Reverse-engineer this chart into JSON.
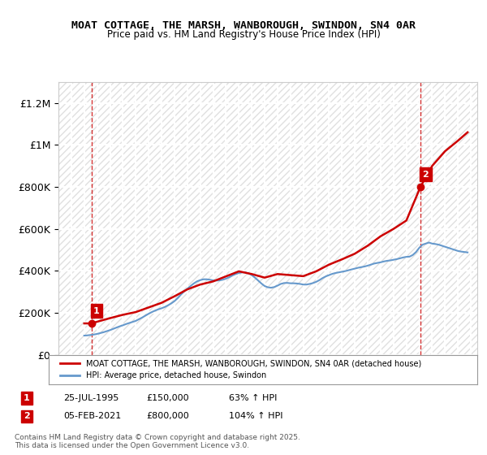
{
  "title": "MOAT COTTAGE, THE MARSH, WANBOROUGH, SWINDON, SN4 0AR",
  "subtitle": "Price paid vs. HM Land Registry's House Price Index (HPI)",
  "hpi_color": "#6699cc",
  "property_color": "#cc0000",
  "vline_color": "#cc0000",
  "background_color": "#ffffff",
  "grid_color": "#cccccc",
  "hatch_color": "#dddddd",
  "ylim": [
    0,
    1300000
  ],
  "yticks": [
    0,
    200000,
    400000,
    600000,
    800000,
    1000000,
    1200000
  ],
  "ytick_labels": [
    "£0",
    "£200K",
    "£400K",
    "£600K",
    "£800K",
    "£1M",
    "£1.2M"
  ],
  "xlabel_start": 1993,
  "xlabel_end": 2025,
  "transactions": [
    {
      "date": 1995.56,
      "price": 150000,
      "label": "1"
    },
    {
      "date": 2021.09,
      "price": 800000,
      "label": "2"
    }
  ],
  "transaction_info": [
    {
      "label": "1",
      "date_str": "25-JUL-1995",
      "price_str": "£150,000",
      "hpi_str": "63% ↑ HPI"
    },
    {
      "label": "2",
      "date_str": "05-FEB-2021",
      "price_str": "£800,000",
      "hpi_str": "104% ↑ HPI"
    }
  ],
  "legend_entries": [
    "MOAT COTTAGE, THE MARSH, WANBOROUGH, SWINDON, SN4 0AR (detached house)",
    "HPI: Average price, detached house, Swindon"
  ],
  "copyright_text": "Contains HM Land Registry data © Crown copyright and database right 2025.\nThis data is licensed under the Open Government Licence v3.0.",
  "hpi_data_x": [
    1995.0,
    1995.25,
    1995.5,
    1995.75,
    1996.0,
    1996.25,
    1996.5,
    1996.75,
    1997.0,
    1997.25,
    1997.5,
    1997.75,
    1998.0,
    1998.25,
    1998.5,
    1998.75,
    1999.0,
    1999.25,
    1999.5,
    1999.75,
    2000.0,
    2000.25,
    2000.5,
    2000.75,
    2001.0,
    2001.25,
    2001.5,
    2001.75,
    2002.0,
    2002.25,
    2002.5,
    2002.75,
    2003.0,
    2003.25,
    2003.5,
    2003.75,
    2004.0,
    2004.25,
    2004.5,
    2004.75,
    2005.0,
    2005.25,
    2005.5,
    2005.75,
    2006.0,
    2006.25,
    2006.5,
    2006.75,
    2007.0,
    2007.25,
    2007.5,
    2007.75,
    2008.0,
    2008.25,
    2008.5,
    2008.75,
    2009.0,
    2009.25,
    2009.5,
    2009.75,
    2010.0,
    2010.25,
    2010.5,
    2010.75,
    2011.0,
    2011.25,
    2011.5,
    2011.75,
    2012.0,
    2012.25,
    2012.5,
    2012.75,
    2013.0,
    2013.25,
    2013.5,
    2013.75,
    2014.0,
    2014.25,
    2014.5,
    2014.75,
    2015.0,
    2015.25,
    2015.5,
    2015.75,
    2016.0,
    2016.25,
    2016.5,
    2016.75,
    2017.0,
    2017.25,
    2017.5,
    2017.75,
    2018.0,
    2018.25,
    2018.5,
    2018.75,
    2019.0,
    2019.25,
    2019.5,
    2019.75,
    2020.0,
    2020.25,
    2020.5,
    2020.75,
    2021.0,
    2021.25,
    2021.5,
    2021.75,
    2022.0,
    2022.25,
    2022.5,
    2022.75,
    2023.0,
    2023.25,
    2023.5,
    2023.75,
    2024.0,
    2024.25,
    2024.5,
    2024.75
  ],
  "hpi_data_y": [
    92000,
    93000,
    95000,
    97000,
    100000,
    104000,
    108000,
    113000,
    118000,
    124000,
    130000,
    136000,
    141000,
    147000,
    152000,
    157000,
    162000,
    170000,
    178000,
    187000,
    196000,
    204000,
    211000,
    217000,
    222000,
    228000,
    236000,
    245000,
    256000,
    270000,
    287000,
    302000,
    315000,
    328000,
    340000,
    350000,
    356000,
    360000,
    360000,
    358000,
    355000,
    354000,
    355000,
    358000,
    363000,
    370000,
    378000,
    385000,
    390000,
    393000,
    393000,
    388000,
    380000,
    368000,
    354000,
    340000,
    328000,
    322000,
    320000,
    323000,
    330000,
    338000,
    342000,
    343000,
    341000,
    341000,
    340000,
    338000,
    335000,
    335000,
    338000,
    342000,
    348000,
    356000,
    366000,
    374000,
    380000,
    386000,
    390000,
    393000,
    396000,
    399000,
    403000,
    407000,
    411000,
    415000,
    418000,
    421000,
    425000,
    430000,
    435000,
    438000,
    441000,
    445000,
    448000,
    450000,
    453000,
    456000,
    460000,
    464000,
    467000,
    468000,
    476000,
    490000,
    510000,
    525000,
    530000,
    535000,
    530000,
    528000,
    525000,
    520000,
    515000,
    510000,
    505000,
    500000,
    495000,
    492000,
    490000,
    488000
  ],
  "property_data_x": [
    1995.0,
    1995.56,
    1995.56,
    1996.0,
    1997.0,
    1998.0,
    1999.0,
    2000.0,
    2001.0,
    2002.0,
    2003.0,
    2004.0,
    2005.0,
    2006.0,
    2007.0,
    2008.0,
    2009.0,
    2010.0,
    2011.0,
    2012.0,
    2013.0,
    2014.0,
    2015.0,
    2016.0,
    2017.0,
    2018.0,
    2019.0,
    2020.0,
    2021.09,
    2021.09,
    2022.0,
    2023.0,
    2024.0,
    2024.75
  ],
  "property_data_y": [
    150000,
    150000,
    150000,
    158000,
    175000,
    191000,
    204000,
    226000,
    248000,
    279000,
    312000,
    335000,
    350000,
    374000,
    398000,
    385000,
    368000,
    385000,
    380000,
    375000,
    398000,
    430000,
    455000,
    482000,
    520000,
    565000,
    600000,
    640000,
    800000,
    800000,
    900000,
    970000,
    1020000,
    1060000
  ]
}
